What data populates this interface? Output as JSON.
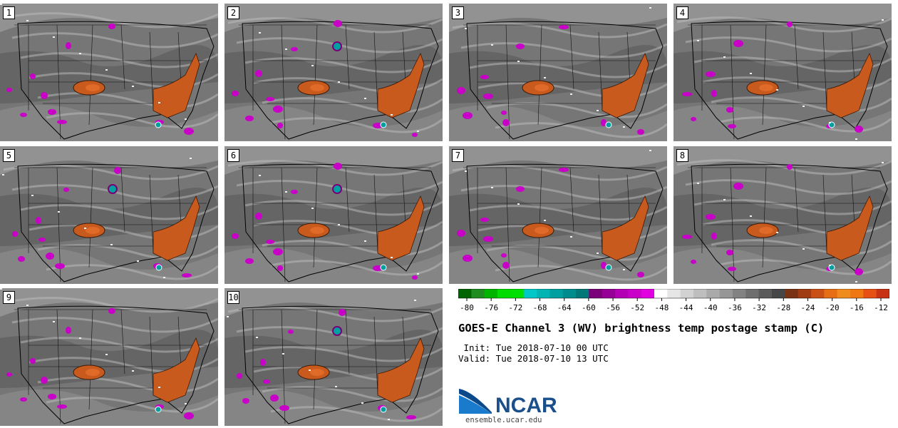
{
  "panels": [
    {
      "label": "1",
      "variant": 0
    },
    {
      "label": "2",
      "variant": 1
    },
    {
      "label": "3",
      "variant": 2
    },
    {
      "label": "4",
      "variant": 3
    },
    {
      "label": "5",
      "variant": 4
    },
    {
      "label": "6",
      "variant": 1
    },
    {
      "label": "7",
      "variant": 2
    },
    {
      "label": "8",
      "variant": 3
    },
    {
      "label": "9",
      "variant": 0
    },
    {
      "label": "10",
      "variant": 4
    }
  ],
  "legend": {
    "colors": [
      "#006400",
      "#1e8c1e",
      "#00b400",
      "#00dc00",
      "#00e000",
      "#00c8c8",
      "#00b4b4",
      "#00a0a0",
      "#008c8c",
      "#007878",
      "#7a007a",
      "#960096",
      "#b400b4",
      "#c800c8",
      "#e000e0",
      "#ffffff",
      "#e6e6e6",
      "#d2d2d2",
      "#bebebe",
      "#aaaaaa",
      "#969696",
      "#828282",
      "#6e6e6e",
      "#5a5a5a",
      "#464646",
      "#7a3214",
      "#a03c14",
      "#c85014",
      "#e66e14",
      "#f08c1e",
      "#f07814",
      "#e65014",
      "#c83214"
    ],
    "tick_labels": [
      "-80",
      "-76",
      "-72",
      "-68",
      "-64",
      "-60",
      "-56",
      "-52",
      "-48",
      "-44",
      "-40",
      "-36",
      "-32",
      "-28",
      "-24",
      "-20",
      "-16",
      "-12"
    ]
  },
  "title": "GOES-E Channel 3 (WV) brightness temp postage stamp (C)",
  "init_line": " Init: Tue 2018-07-10 00 UTC",
  "valid_line": "Valid: Tue 2018-07-10 13 UTC",
  "logo": {
    "text": "NCAR"
  },
  "site": "ensemble.ucar.edu",
  "colors": {
    "ocean_gray": "#8a8a8a",
    "land_gray": "#6e6e6e",
    "orange": "#c85a1e",
    "magenta": "#c800c8",
    "teal": "#00a0a0",
    "white": "#f0f0f0"
  }
}
